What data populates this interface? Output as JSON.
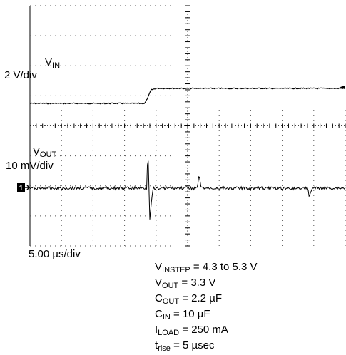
{
  "chart_data": {
    "type": "line",
    "title": "",
    "xlabel": "5.00 µs/div",
    "x_divisions": 10,
    "x_range_us": [
      0,
      50
    ],
    "grid": true,
    "series": [
      {
        "name": "VIN",
        "channel_label_main": "V",
        "channel_label_sub": "IN",
        "scale": "2 V/div",
        "x_us": [
          0,
          18.2,
          18.6,
          19.2,
          20.0,
          50
        ],
        "y_V": [
          4.3,
          4.3,
          4.6,
          5.2,
          5.3,
          5.3
        ]
      },
      {
        "name": "VOUT",
        "channel_label_main": "V",
        "channel_label_sub": "OUT",
        "scale": "10 mV/div",
        "x_us": [
          0,
          18.0,
          18.5,
          18.7,
          19.0,
          19.5,
          26.5,
          26.8,
          27.2,
          44.0,
          44.3,
          44.7,
          50
        ],
        "y_mV": [
          0,
          0,
          0,
          13,
          -10,
          0,
          0,
          4,
          0,
          0,
          -3,
          0,
          0
        ]
      }
    ],
    "markers": {
      "channel1_ground": "1",
      "trigger_arrow": "◄"
    },
    "annotations": [
      {
        "main": "V",
        "sub": "INSTEP",
        "rest": " = 4.3  to 5.3 V"
      },
      {
        "main": "V",
        "sub": "OUT",
        "rest": "  = 3.3 V"
      },
      {
        "main": "C",
        "sub": "OUT",
        "rest": " = 2.2 µF"
      },
      {
        "main": "C",
        "sub": "IN",
        "rest": " = 10 µF"
      },
      {
        "main": "I",
        "sub": "LOAD",
        "rest": " = 250 mA"
      },
      {
        "main": "t",
        "sub": "rise",
        "rest": " = 5 µsec"
      }
    ]
  }
}
